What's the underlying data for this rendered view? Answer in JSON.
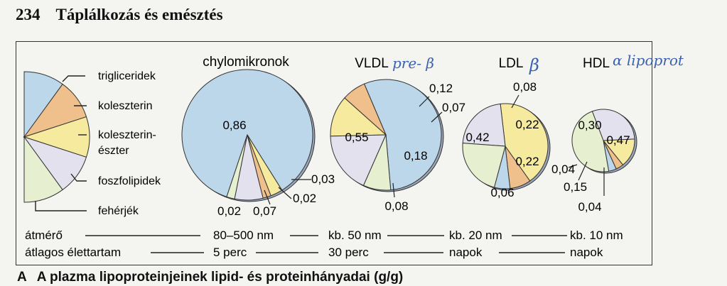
{
  "header": {
    "page_number": "234",
    "title": "Táplálkozás és emésztés"
  },
  "caption": {
    "letter": "A",
    "text": "A plazma lipoproteinjeinek lipid- és proteinhányadai (g/g)"
  },
  "legend": {
    "items": [
      {
        "label_lines": [
          "trigliceridek"
        ],
        "color": "#bcd6ea"
      },
      {
        "label_lines": [
          "koleszterin"
        ],
        "color": "#efbf8c"
      },
      {
        "label_lines": [
          "koleszterin-",
          "észter"
        ],
        "color": "#f5ea9d"
      },
      {
        "label_lines": [
          "foszfolipidek"
        ],
        "color": "#e4e1ef"
      },
      {
        "label_lines": [
          "fehérjék"
        ],
        "color": "#e6efcf"
      }
    ]
  },
  "handwriting": {
    "vldl": "pre- β",
    "ldl": "β",
    "hdl": "α  lipoprot"
  },
  "rows": {
    "diameter": {
      "label": "átmérő",
      "values": [
        "80–500 nm",
        "kb. 50 nm",
        "kb. 20 nm",
        "kb. 10 nm"
      ]
    },
    "lifetime": {
      "label": "átlagos élettartam",
      "values": [
        "5 perc",
        "30 perc",
        "napok",
        "napok"
      ]
    }
  },
  "chart_data": {
    "type": "pie",
    "components": [
      "trigliceridek",
      "koleszterin",
      "koleszterin-észter",
      "foszfolipidek",
      "fehérjék"
    ],
    "colors": [
      "#bcd6ea",
      "#efbf8c",
      "#f5ea9d",
      "#e4e1ef",
      "#e6efcf"
    ],
    "charts": [
      {
        "name": "chylomikronok",
        "values": [
          0.86,
          0.02,
          0.03,
          0.07,
          0.02
        ],
        "labels": [
          "0,86",
          "0,02",
          "0,03",
          "0,07",
          "0,02"
        ]
      },
      {
        "name": "VLDL",
        "values": [
          0.55,
          0.07,
          0.12,
          0.18,
          0.08
        ],
        "labels": [
          "0,55",
          "0,07",
          "0,12",
          "0,18",
          "0,08"
        ]
      },
      {
        "name": "LDL",
        "values": [
          0.06,
          0.08,
          0.42,
          0.22,
          0.22
        ],
        "labels": [
          "0,06",
          "0,08",
          "0,42",
          "0,22",
          "0,22"
        ]
      },
      {
        "name": "HDL",
        "values": [
          0.04,
          0.04,
          0.15,
          0.3,
          0.47
        ],
        "labels": [
          "0,04",
          "0,04",
          "0,15",
          "0,30",
          "0,47"
        ]
      }
    ]
  }
}
